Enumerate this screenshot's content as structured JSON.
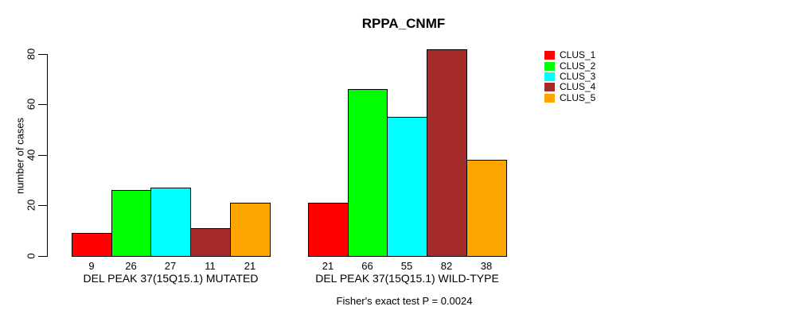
{
  "title": "RPPA_CNMF",
  "y_axis": {
    "label": "number of cases"
  },
  "footer_note": "Fisher's exact test P = 0.0024",
  "legend": {
    "entries": [
      {
        "label": "CLUS_1",
        "color": "#FF0000"
      },
      {
        "label": "CLUS_2",
        "color": "#00FF00"
      },
      {
        "label": "CLUS_3",
        "color": "#00FFFF"
      },
      {
        "label": "CLUS_4",
        "color": "#A52A2A"
      },
      {
        "label": "CLUS_5",
        "color": "#FFA500"
      }
    ]
  },
  "chart_data": {
    "type": "bar",
    "title": "RPPA_CNMF",
    "xlabel": "",
    "ylabel": "number of cases",
    "ylim": [
      0,
      80
    ],
    "yticks": [
      0,
      20,
      40,
      60,
      80
    ],
    "grid": false,
    "legend_position": "right",
    "categories": [
      "DEL PEAK 37(15Q15.1) MUTATED",
      "DEL PEAK 37(15Q15.1) WILD-TYPE"
    ],
    "series": [
      {
        "name": "CLUS_1",
        "color": "#FF0000",
        "values": [
          9,
          21
        ]
      },
      {
        "name": "CLUS_2",
        "color": "#00FF00",
        "values": [
          26,
          66
        ]
      },
      {
        "name": "CLUS_3",
        "color": "#00FFFF",
        "values": [
          27,
          55
        ]
      },
      {
        "name": "CLUS_4",
        "color": "#A52A2A",
        "values": [
          11,
          82
        ]
      },
      {
        "name": "CLUS_5",
        "color": "#FFA500",
        "values": [
          21,
          38
        ]
      }
    ],
    "bar_value_labels": [
      [
        9,
        26,
        27,
        11,
        21
      ],
      [
        21,
        66,
        55,
        82,
        38
      ]
    ],
    "annotation": "Fisher's exact test P = 0.0024"
  }
}
